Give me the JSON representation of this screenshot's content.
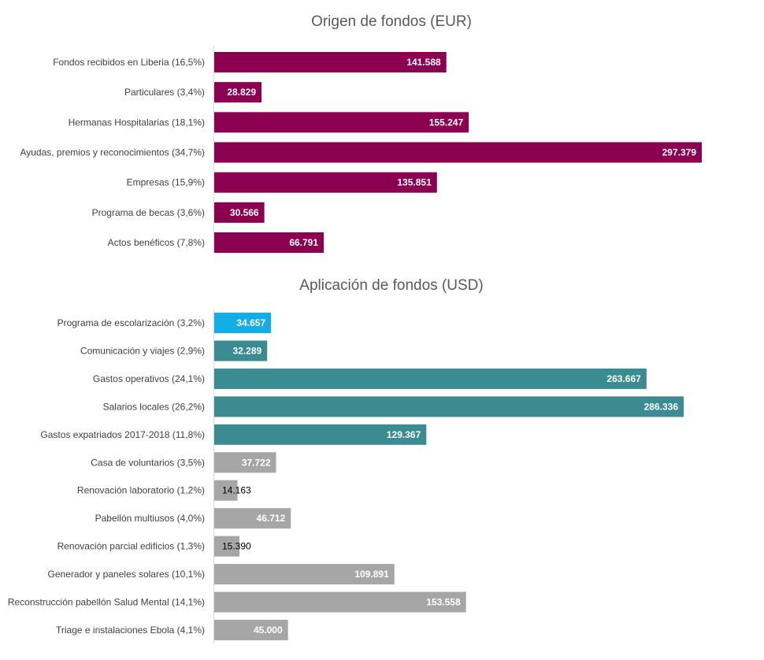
{
  "chart_data": [
    {
      "type": "bar",
      "orientation": "horizontal",
      "title": "Origen de fondos (EUR)",
      "xlim": [
        0,
        330000
      ],
      "grid": false,
      "legend": "none",
      "categories": [
        "Fondos recibidos en Liberia (16,5%)",
        "Particulares (3,4%)",
        "Hermanas Hospitalarias (18,1%)",
        "Ayudas, premios y reconocimientos (34,7%)",
        "Empresas (15,9%)",
        "Programa de becas (3,6%)",
        "Actos benéficos (7,8%)"
      ],
      "values": [
        141588,
        28829,
        155247,
        297379,
        135851,
        30566,
        66791
      ],
      "value_labels": [
        "141.588",
        "28.829",
        "155.247",
        "297.379",
        "135.851",
        "30.566",
        "66.791"
      ],
      "colors": [
        "#8b0051",
        "#8b0051",
        "#8b0051",
        "#8b0051",
        "#8b0051",
        "#8b0051",
        "#8b0051"
      ]
    },
    {
      "type": "bar",
      "orientation": "horizontal",
      "title": "Aplicación de fondos (USD)",
      "xlim": [
        0,
        330000
      ],
      "grid": false,
      "legend": "none",
      "categories": [
        "Programa de escolarización (3,2%)",
        "Comunicación y viajes (2,9%)",
        "Gastos operativos (24,1%)",
        "Salarios locales (26,2%)",
        "Gastos expatriados 2017-2018 (11,8%)",
        "Casa de voluntarios (3,5%)",
        "Renovación laboratorio (1,2%)",
        "Pabellón multiusos (4,0%)",
        "Renovación parcial edificios (1,3%)",
        "Generador y paneles solares (10,1%)",
        "Reconstrucción pabellón Salud Mental (14,1%)",
        "Triage e instalaciones Ebola (4,1%)"
      ],
      "values": [
        34657,
        32289,
        263667,
        286336,
        129367,
        37722,
        14163,
        46712,
        15390,
        109891,
        153558,
        45000
      ],
      "value_labels": [
        "34.657",
        "32.289",
        "263.667",
        "286.336",
        "129.367",
        "37.722",
        "14.163",
        "46.712",
        "15.390",
        "109.891",
        "153.558",
        "45.000"
      ],
      "colors": [
        "#12aee5",
        "#3a8c92",
        "#3a8c92",
        "#3a8c92",
        "#3a8c92",
        "#a6a6a6",
        "#a6a6a6",
        "#a6a6a6",
        "#a6a6a6",
        "#a6a6a6",
        "#a6a6a6",
        "#a6a6a6"
      ]
    }
  ]
}
